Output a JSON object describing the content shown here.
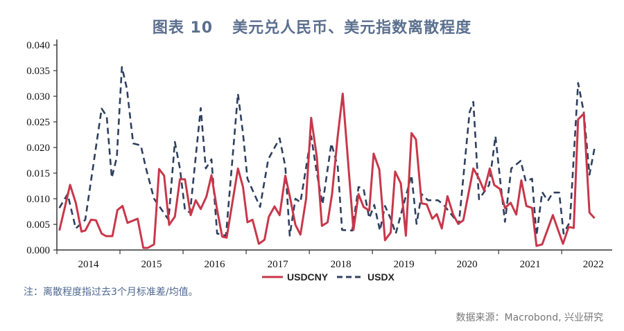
{
  "title": {
    "figure_no": "图表 10",
    "text": "美元兑人民币、美元指数离散程度"
  },
  "note": "注：离散程度指过去3个月标准差/均值。",
  "source": "数据来源：Macrobond, 兴业研究",
  "colors": {
    "usdcny": "#c8374a",
    "usdx": "#2e3f5e",
    "title": "#5b6f8e"
  },
  "chart_data": {
    "type": "line",
    "title": "美元兑人民币、美元指数离散程度",
    "xlabel": "",
    "ylabel": "",
    "xlim": [
      2014.0,
      2022.8
    ],
    "ylim": [
      0,
      0.04
    ],
    "yticks": [
      "0.000",
      "0.005",
      "0.010",
      "0.015",
      "0.020",
      "0.025",
      "0.030",
      "0.035",
      "0.040"
    ],
    "xticks": [
      "2014",
      "2015",
      "2016",
      "2017",
      "2018",
      "2019",
      "2020",
      "2021",
      "2022"
    ],
    "grid": false,
    "legend": "bottom-center",
    "series": [
      {
        "name": "USDCNY",
        "style": "solid",
        "points": [
          [
            2014.04,
            0.0038
          ],
          [
            2014.21,
            0.0127
          ],
          [
            2014.3,
            0.0092
          ],
          [
            2014.39,
            0.0036
          ],
          [
            2014.45,
            0.0038
          ],
          [
            2014.54,
            0.0059
          ],
          [
            2014.62,
            0.0058
          ],
          [
            2014.71,
            0.0032
          ],
          [
            2014.78,
            0.0027
          ],
          [
            2014.88,
            0.0027
          ],
          [
            2014.96,
            0.0078
          ],
          [
            2015.04,
            0.0086
          ],
          [
            2015.12,
            0.0053
          ],
          [
            2015.28,
            0.0061
          ],
          [
            2015.37,
            0.0004
          ],
          [
            2015.44,
            0.0004
          ],
          [
            2015.54,
            0.0011
          ],
          [
            2015.62,
            0.0158
          ],
          [
            2015.7,
            0.0145
          ],
          [
            2015.78,
            0.0049
          ],
          [
            2015.87,
            0.0065
          ],
          [
            2015.95,
            0.0138
          ],
          [
            2016.03,
            0.0138
          ],
          [
            2016.12,
            0.0068
          ],
          [
            2016.2,
            0.0097
          ],
          [
            2016.28,
            0.008
          ],
          [
            2016.37,
            0.0104
          ],
          [
            2016.45,
            0.0146
          ],
          [
            2016.54,
            0.0078
          ],
          [
            2016.62,
            0.0026
          ],
          [
            2016.69,
            0.0024
          ],
          [
            2016.87,
            0.0159
          ],
          [
            2016.95,
            0.0123
          ],
          [
            2017.02,
            0.0054
          ],
          [
            2017.1,
            0.0059
          ],
          [
            2017.2,
            0.0012
          ],
          [
            2017.29,
            0.002
          ],
          [
            2017.36,
            0.0065
          ],
          [
            2017.45,
            0.0085
          ],
          [
            2017.53,
            0.0068
          ],
          [
            2017.62,
            0.0145
          ],
          [
            2017.69,
            0.0105
          ],
          [
            2017.78,
            0.0049
          ],
          [
            2017.86,
            0.003
          ],
          [
            2017.95,
            0.01
          ],
          [
            2018.03,
            0.0258
          ],
          [
            2018.12,
            0.0181
          ],
          [
            2018.2,
            0.0047
          ],
          [
            2018.29,
            0.0054
          ],
          [
            2018.36,
            0.0109
          ],
          [
            2018.45,
            0.0222
          ],
          [
            2018.53,
            0.0305
          ],
          [
            2018.7,
            0.0039
          ],
          [
            2018.78,
            0.0109
          ],
          [
            2018.86,
            0.0084
          ],
          [
            2018.95,
            0.0077
          ],
          [
            2019.02,
            0.0188
          ],
          [
            2019.11,
            0.0157
          ],
          [
            2019.2,
            0.0019
          ],
          [
            2019.29,
            0.0034
          ],
          [
            2019.36,
            0.0153
          ],
          [
            2019.45,
            0.013
          ],
          [
            2019.53,
            0.0028
          ],
          [
            2019.62,
            0.0228
          ],
          [
            2019.69,
            0.0216
          ],
          [
            2019.78,
            0.0091
          ],
          [
            2019.86,
            0.0089
          ],
          [
            2019.95,
            0.0061
          ],
          [
            2020.02,
            0.007
          ],
          [
            2020.1,
            0.0042
          ],
          [
            2020.19,
            0.0105
          ],
          [
            2020.28,
            0.0069
          ],
          [
            2020.36,
            0.0051
          ],
          [
            2020.44,
            0.0058
          ],
          [
            2020.6,
            0.0159
          ],
          [
            2020.69,
            0.0139
          ],
          [
            2020.77,
            0.0116
          ],
          [
            2020.86,
            0.0159
          ],
          [
            2020.93,
            0.0127
          ],
          [
            2021.02,
            0.0119
          ],
          [
            2021.1,
            0.0082
          ],
          [
            2021.19,
            0.0092
          ],
          [
            2021.28,
            0.0069
          ],
          [
            2021.36,
            0.0136
          ],
          [
            2021.44,
            0.0086
          ],
          [
            2021.53,
            0.0082
          ],
          [
            2021.6,
            0.0008
          ],
          [
            2021.69,
            0.0011
          ],
          [
            2021.86,
            0.0068
          ],
          [
            2022.02,
            0.0012
          ],
          [
            2022.11,
            0.0045
          ],
          [
            2022.19,
            0.0043
          ],
          [
            2022.26,
            0.0255
          ],
          [
            2022.35,
            0.0266
          ],
          [
            2022.44,
            0.0073
          ],
          [
            2022.52,
            0.0062
          ]
        ]
      },
      {
        "name": "USDX",
        "style": "dashed",
        "points": [
          [
            2014.04,
            0.0082
          ],
          [
            2014.17,
            0.0109
          ],
          [
            2014.3,
            0.0042
          ],
          [
            2014.45,
            0.0059
          ],
          [
            2014.71,
            0.0276
          ],
          [
            2014.79,
            0.0261
          ],
          [
            2014.87,
            0.0141
          ],
          [
            2014.95,
            0.0181
          ],
          [
            2015.03,
            0.0357
          ],
          [
            2015.11,
            0.0315
          ],
          [
            2015.21,
            0.0208
          ],
          [
            2015.33,
            0.0204
          ],
          [
            2015.41,
            0.0161
          ],
          [
            2015.54,
            0.01
          ],
          [
            2015.77,
            0.0059
          ],
          [
            2015.87,
            0.0211
          ],
          [
            2015.95,
            0.0159
          ],
          [
            2016.03,
            0.0078
          ],
          [
            2016.11,
            0.0073
          ],
          [
            2016.28,
            0.0277
          ],
          [
            2016.36,
            0.0159
          ],
          [
            2016.45,
            0.0177
          ],
          [
            2016.54,
            0.0032
          ],
          [
            2016.68,
            0.0028
          ],
          [
            2016.87,
            0.0305
          ],
          [
            2016.95,
            0.0227
          ],
          [
            2017.02,
            0.0139
          ],
          [
            2017.22,
            0.0084
          ],
          [
            2017.35,
            0.0177
          ],
          [
            2017.53,
            0.0218
          ],
          [
            2017.62,
            0.0163
          ],
          [
            2017.69,
            0.0028
          ],
          [
            2017.78,
            0.01
          ],
          [
            2017.86,
            0.0093
          ],
          [
            2018.03,
            0.0222
          ],
          [
            2018.12,
            0.015
          ],
          [
            2018.21,
            0.0089
          ],
          [
            2018.35,
            0.0208
          ],
          [
            2018.45,
            0.0163
          ],
          [
            2018.52,
            0.0039
          ],
          [
            2018.68,
            0.0038
          ],
          [
            2018.78,
            0.0123
          ],
          [
            2018.86,
            0.0119
          ],
          [
            2018.95,
            0.0062
          ],
          [
            2019.03,
            0.0088
          ],
          [
            2019.12,
            0.0038
          ],
          [
            2019.2,
            0.0086
          ],
          [
            2019.29,
            0.0061
          ],
          [
            2019.37,
            0.0032
          ],
          [
            2019.62,
            0.0146
          ],
          [
            2019.7,
            0.0051
          ],
          [
            2019.78,
            0.0109
          ],
          [
            2019.88,
            0.0097
          ],
          [
            2020.04,
            0.0097
          ],
          [
            2020.13,
            0.0088
          ],
          [
            2020.37,
            0.0051
          ],
          [
            2020.54,
            0.0269
          ],
          [
            2020.6,
            0.0289
          ],
          [
            2020.69,
            0.0099
          ],
          [
            2020.85,
            0.0127
          ],
          [
            2020.95,
            0.0222
          ],
          [
            2021.03,
            0.013
          ],
          [
            2021.1,
            0.0055
          ],
          [
            2021.2,
            0.0159
          ],
          [
            2021.35,
            0.0174
          ],
          [
            2021.43,
            0.0134
          ],
          [
            2021.53,
            0.0139
          ],
          [
            2021.6,
            0.0028
          ],
          [
            2021.69,
            0.0113
          ],
          [
            2021.78,
            0.0096
          ],
          [
            2021.86,
            0.0112
          ],
          [
            2021.96,
            0.0112
          ],
          [
            2022.03,
            0.0032
          ],
          [
            2022.13,
            0.0055
          ],
          [
            2022.26,
            0.0326
          ],
          [
            2022.35,
            0.0269
          ],
          [
            2022.44,
            0.0147
          ],
          [
            2022.53,
            0.0205
          ]
        ]
      }
    ]
  }
}
